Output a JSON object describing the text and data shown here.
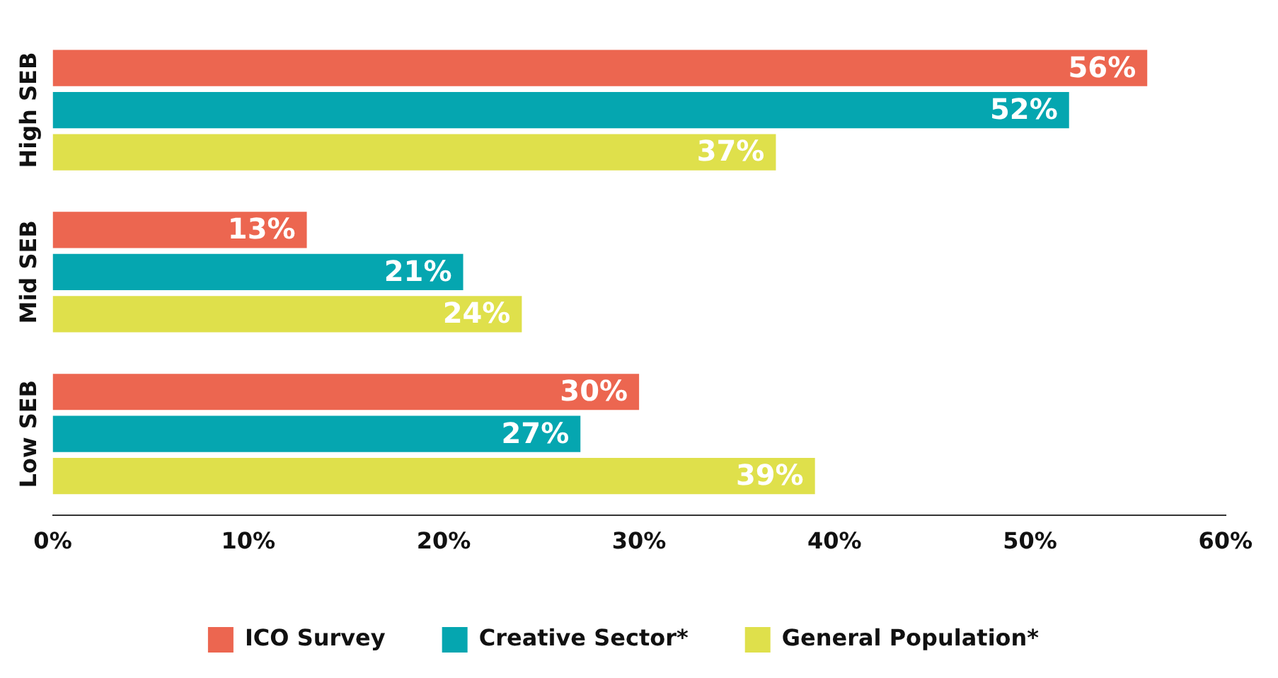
{
  "chart_data": {
    "type": "bar",
    "orientation": "horizontal",
    "categories": [
      "High SEB",
      "Mid SEB",
      "Low SEB"
    ],
    "series": [
      {
        "name": "ICO Survey",
        "color": "#ec6650",
        "values": [
          56,
          13,
          30
        ],
        "value_labels": [
          "56%",
          "13%",
          "30%"
        ]
      },
      {
        "name": "Creative Sector*",
        "color": "#05a6b0",
        "values": [
          52,
          21,
          27
        ],
        "value_labels": [
          "52%",
          "21%",
          "27%"
        ]
      },
      {
        "name": "General Population*",
        "color": "#dfe04b",
        "values": [
          37,
          24,
          39
        ],
        "value_labels": [
          "37%",
          "24%",
          "39%"
        ]
      }
    ],
    "xlim": [
      0,
      60
    ],
    "xticks": [
      {
        "value": 0,
        "label": "0%"
      },
      {
        "value": 10,
        "label": "10%"
      },
      {
        "value": 20,
        "label": "20%"
      },
      {
        "value": 30,
        "label": "30%"
      },
      {
        "value": 40,
        "label": "40%"
      },
      {
        "value": 50,
        "label": "50%"
      },
      {
        "value": 60,
        "label": "60%"
      }
    ],
    "grid": false,
    "legend": "bottom"
  }
}
